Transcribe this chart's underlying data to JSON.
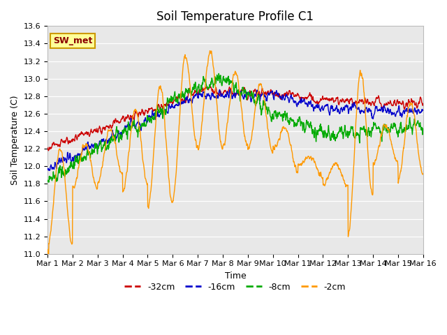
{
  "title": "Soil Temperature Profile C1",
  "xlabel": "Time",
  "ylabel": "Soil Temperature (C)",
  "ylim": [
    11.0,
    13.6
  ],
  "yticks": [
    11.0,
    11.2,
    11.4,
    11.6,
    11.8,
    12.0,
    12.2,
    12.4,
    12.6,
    12.8,
    13.0,
    13.2,
    13.4,
    13.6
  ],
  "xtick_labels": [
    "Mar 1",
    "Mar 2",
    "Mar 3",
    "Mar 4",
    "Mar 5",
    "Mar 6",
    "Mar 7",
    "Mar 8",
    "Mar 9",
    "Mar 10",
    "Mar 11",
    "Mar 12",
    "Mar 13",
    "Mar 14",
    "Mar 15",
    "Mar 16"
  ],
  "legend_label": "SW_met",
  "series_labels": [
    "-32cm",
    "-16cm",
    "-8cm",
    "-2cm"
  ],
  "series_colors": [
    "#cc0000",
    "#0000cc",
    "#00aa00",
    "#ff9900"
  ],
  "line_width": 1.0,
  "bg_color": "#e8e8e8",
  "grid_color": "#ffffff",
  "title_fontsize": 12,
  "axis_fontsize": 9,
  "tick_fontsize": 8,
  "legend_fontsize": 9
}
